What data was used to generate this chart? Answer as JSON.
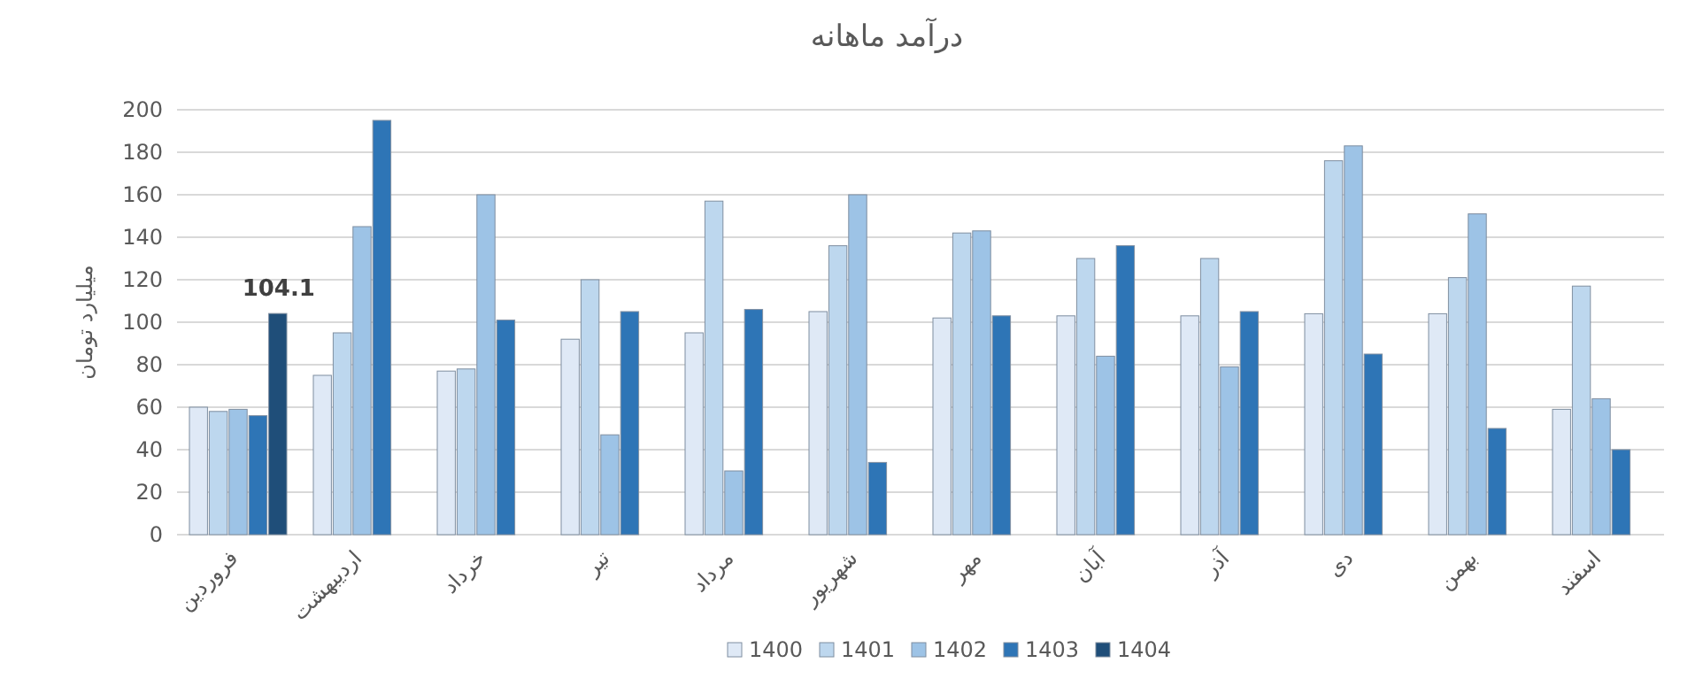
{
  "chart_data": {
    "type": "bar",
    "title": "درآمد ماهانه",
    "ylabel": "میلیارد تومان",
    "categories": [
      "فروردین",
      "اردیبهشت",
      "خرداد",
      "تیر",
      "مرداد",
      "شهریور",
      "مهر",
      "آبان",
      "آذر",
      "دی",
      "بهمن",
      "اسفند"
    ],
    "series": [
      {
        "name": "1400",
        "color": "#dfe9f6",
        "values": [
          60,
          75,
          77,
          92,
          95,
          105,
          102,
          103,
          103,
          104,
          104,
          59
        ]
      },
      {
        "name": "1401",
        "color": "#bdd7ee",
        "values": [
          58,
          95,
          78,
          120,
          157,
          136,
          142,
          130,
          130,
          176,
          121,
          117
        ]
      },
      {
        "name": "1402",
        "color": "#9dc3e6",
        "values": [
          59,
          145,
          160,
          47,
          30,
          160,
          143,
          84,
          79,
          183,
          151,
          64
        ]
      },
      {
        "name": "1403",
        "color": "#2e75b6",
        "values": [
          56,
          195,
          101,
          105,
          106,
          34,
          103,
          136,
          105,
          85,
          50,
          40
        ]
      },
      {
        "name": "1404",
        "color": "#1f4e79",
        "values": [
          104.1,
          null,
          null,
          null,
          null,
          null,
          null,
          null,
          null,
          null,
          null,
          null
        ],
        "value_labels": [
          "104.1",
          null,
          null,
          null,
          null,
          null,
          null,
          null,
          null,
          null,
          null,
          null
        ]
      }
    ],
    "ylim": [
      0,
      200
    ],
    "yticks": [
      0,
      20,
      40,
      60,
      80,
      100,
      120,
      140,
      160,
      180,
      200
    ],
    "grid": "y",
    "legend": "bottom"
  }
}
